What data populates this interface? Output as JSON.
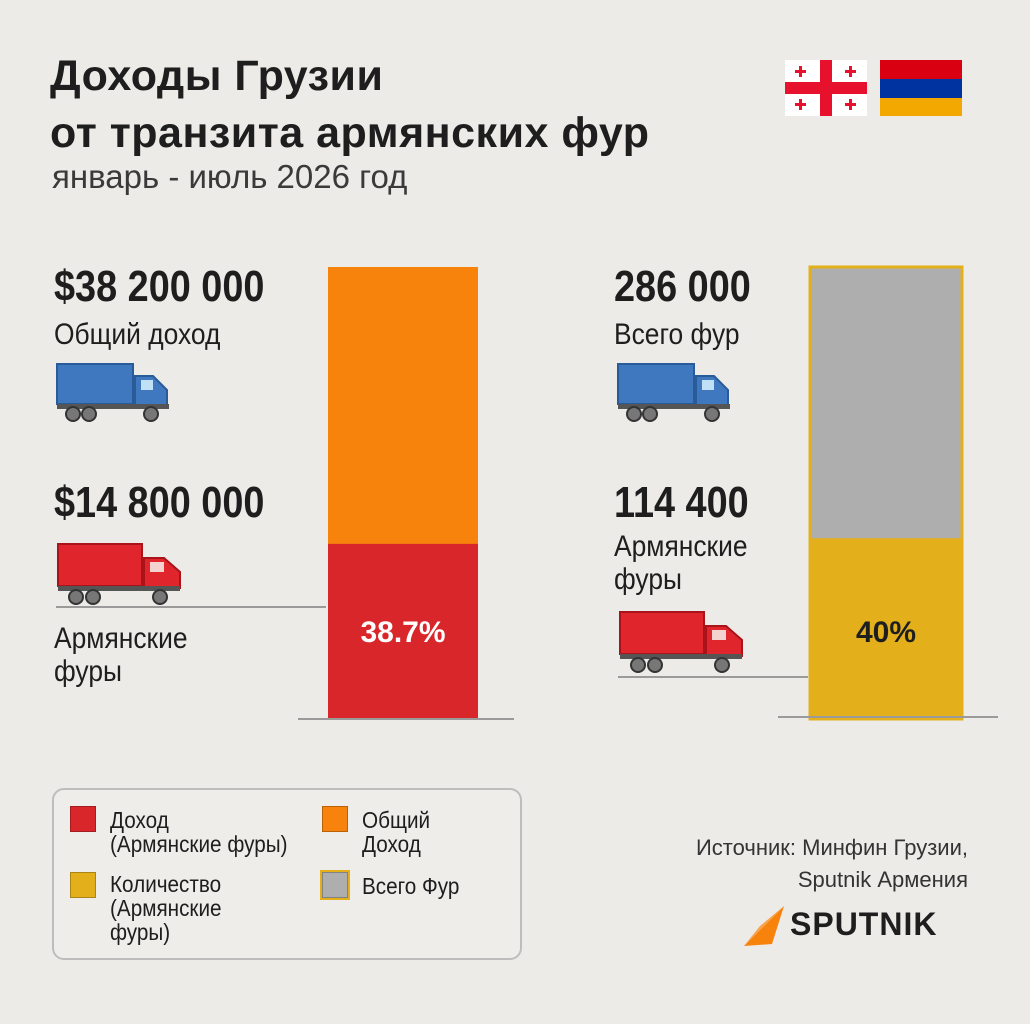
{
  "title_line1": "Доходы Грузии",
  "title_line2": "от транзита армянских фур",
  "subtitle": "январь - июль 2026 год",
  "colors": {
    "revenue_armenian": "#d9262b",
    "revenue_total": "#f7820c",
    "count_armenian": "#e3b01c",
    "count_total": "#aeaeae",
    "truck_blue": "#3f78bf",
    "truck_red": "#e0262c"
  },
  "chart_data": [
    {
      "type": "bar",
      "stacked": true,
      "series": [
        {
          "name": "Доход (Армянские фуры)",
          "values": [
            14800000
          ]
        },
        {
          "name": "Общий Доход",
          "values": [
            38200000
          ]
        }
      ],
      "total_value": "$38 200 000",
      "total_label": "Общий доход",
      "part_value": "$14 800 000",
      "part_label": "Армянские фуры",
      "percent_label": "38.7%",
      "percent": 38.7
    },
    {
      "type": "bar",
      "stacked": true,
      "series": [
        {
          "name": "Количество (Армянские фуры)",
          "values": [
            114400
          ]
        },
        {
          "name": "Всего Фур",
          "values": [
            286000
          ]
        }
      ],
      "total_value": "286 000",
      "total_label": "Всего фур",
      "part_value": "114 400",
      "part_label": "Армянские фуры",
      "percent_label": "40%",
      "percent": 40
    }
  ],
  "legend": {
    "revenue_armenian_l1": "Доход",
    "revenue_armenian_l2": "(Армянские фуры)",
    "revenue_total_l1": "Общий",
    "revenue_total_l2": "Доход",
    "count_armenian_l1": "Количество",
    "count_armenian_l2": "(Армянские",
    "count_armenian_l3": "фуры)",
    "count_total": "Всего Фур"
  },
  "source_line1": "Источник: Минфин Грузии,",
  "source_line2": "Sputnik Армения",
  "brand": "SPUTNIK"
}
